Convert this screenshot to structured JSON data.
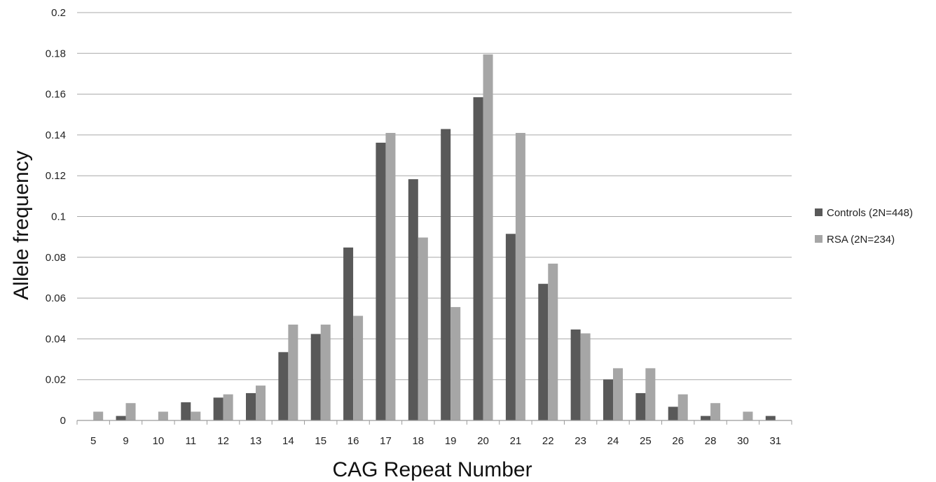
{
  "chart_data": {
    "type": "bar",
    "title": "",
    "xlabel": "CAG Repeat Number",
    "ylabel": "Allele frequency",
    "ylim": [
      0,
      0.2
    ],
    "yticks": [
      "0",
      "0.02",
      "0.04",
      "0.06",
      "0.08",
      "0.1",
      "0.12",
      "0.14",
      "0.16",
      "0.18",
      "0.2"
    ],
    "grid": true,
    "legend_position": "right",
    "categories": [
      "5",
      "9",
      "10",
      "11",
      "12",
      "13",
      "14",
      "15",
      "16",
      "17",
      "18",
      "19",
      "20",
      "21",
      "22",
      "23",
      "24",
      "25",
      "26",
      "28",
      "30",
      "31"
    ],
    "series": [
      {
        "name": "Controls (2N=448)",
        "color": "#595959",
        "values": [
          0,
          0.0022,
          0,
          0.0089,
          0.0112,
          0.0134,
          0.0335,
          0.0424,
          0.0848,
          0.1362,
          0.1183,
          0.1429,
          0.1585,
          0.0915,
          0.067,
          0.0446,
          0.0201,
          0.0134,
          0.0067,
          0.0022,
          0,
          0.0022
        ]
      },
      {
        "name": "RSA (2N=234)",
        "color": "#a6a6a6",
        "values": [
          0.0043,
          0.0085,
          0.0043,
          0.0043,
          0.0128,
          0.0171,
          0.047,
          0.047,
          0.0513,
          0.141,
          0.0897,
          0.0556,
          0.1795,
          0.141,
          0.0769,
          0.0427,
          0.0256,
          0.0256,
          0.0128,
          0.0085,
          0.0043,
          0
        ]
      }
    ]
  }
}
